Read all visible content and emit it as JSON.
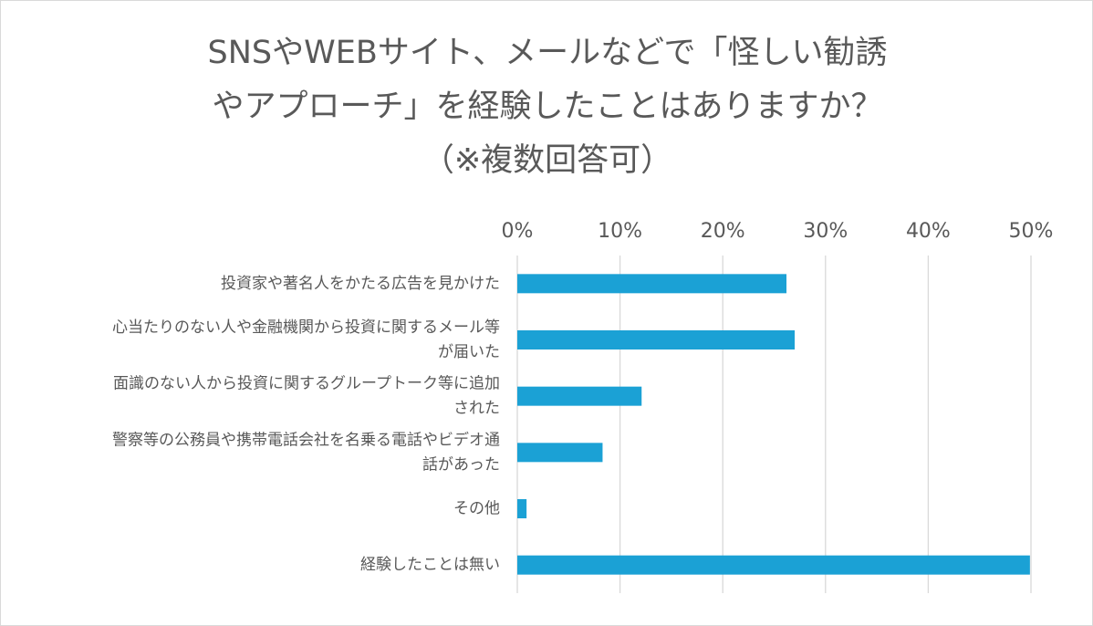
{
  "chart_data": {
    "type": "bar",
    "orientation": "horizontal",
    "title_lines": [
      "SNSやWEBサイト、メールなどで「怪しい勧誘",
      "やアプローチ」を経験したことはありますか？",
      "（※複数回答可）"
    ],
    "categories": [
      [
        "投資家や著名人をかたる広告を見かけた"
      ],
      [
        "心当たりのない人や金融機関から投資に関するメール等",
        "が届いた"
      ],
      [
        "面識のない人から投資に関するグループトーク等に追加",
        "された"
      ],
      [
        "警察等の公務員や携帯電話会社を名乗る電話やビデオ通",
        "話があった"
      ],
      [
        "その他"
      ],
      [
        "経験したことは無い"
      ]
    ],
    "values": [
      26.2,
      27.0,
      12.1,
      8.3,
      0.9,
      49.9
    ],
    "xlim": [
      0,
      50
    ],
    "ticks": [
      0,
      10,
      20,
      30,
      40,
      50
    ],
    "tick_labels": [
      "0%",
      "10%",
      "20%",
      "30%",
      "40%",
      "50%"
    ],
    "axis_position": "top",
    "grid": true,
    "legend": "none",
    "colors": {
      "bar": "#1BA1D5",
      "grid": "#d9d9d9",
      "text": "#595959"
    }
  }
}
